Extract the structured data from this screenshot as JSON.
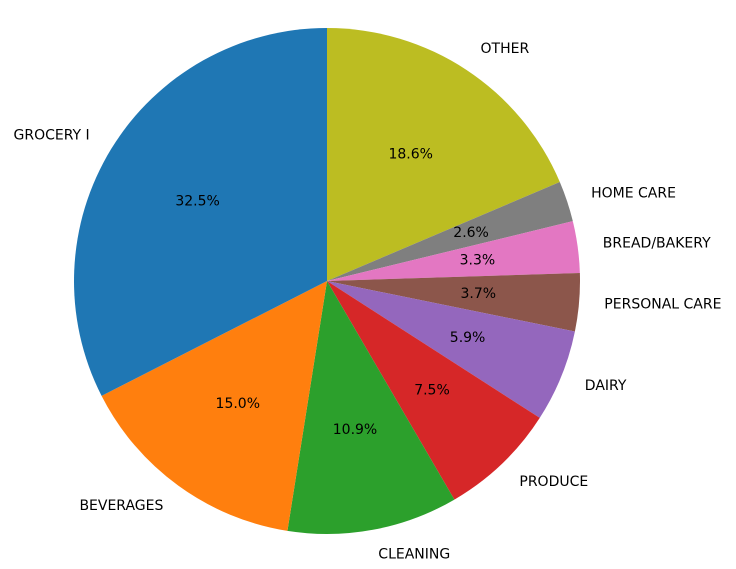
{
  "chart_data": {
    "type": "pie",
    "start": "top",
    "direction": "clockwise",
    "slices": [
      {
        "label": "OTHER",
        "value": 18.6,
        "pct_label": "18.6%",
        "color": "#bcbd22"
      },
      {
        "label": "HOME CARE",
        "value": 2.6,
        "pct_label": "2.6%",
        "color": "#7f7f7f"
      },
      {
        "label": "BREAD/BAKERY",
        "value": 3.3,
        "pct_label": "3.3%",
        "color": "#e377c2"
      },
      {
        "label": "PERSONAL CARE",
        "value": 3.7,
        "pct_label": "3.7%",
        "color": "#8c564b"
      },
      {
        "label": "DAIRY",
        "value": 5.9,
        "pct_label": "5.9%",
        "color": "#9467bd"
      },
      {
        "label": "PRODUCE",
        "value": 7.5,
        "pct_label": "7.5%",
        "color": "#d62728"
      },
      {
        "label": "CLEANING",
        "value": 10.9,
        "pct_label": "10.9%",
        "color": "#2ca02c"
      },
      {
        "label": "BEVERAGES",
        "value": 15.0,
        "pct_label": "15.0%",
        "color": "#ff7f0e"
      },
      {
        "label": "GROCERY I",
        "value": 32.5,
        "pct_label": "32.5%",
        "color": "#1f77b4"
      }
    ]
  }
}
